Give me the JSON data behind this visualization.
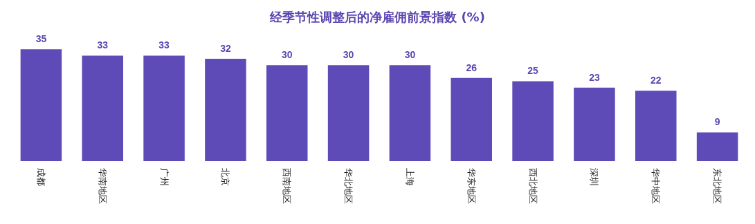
{
  "chart_data": {
    "type": "bar",
    "title": "经季节性调整后的净雇佣前景指数 (%)",
    "categories": [
      "成都",
      "华南地区",
      "广州",
      "北京",
      "西南地区",
      "华北地区",
      "上海",
      "华东地区",
      "西北地区",
      "深圳",
      "华中地区",
      "东北地区"
    ],
    "values": [
      35,
      33,
      33,
      32,
      30,
      30,
      30,
      26,
      25,
      23,
      22,
      9
    ],
    "color": "#5e4bb8",
    "data_labels": true
  }
}
